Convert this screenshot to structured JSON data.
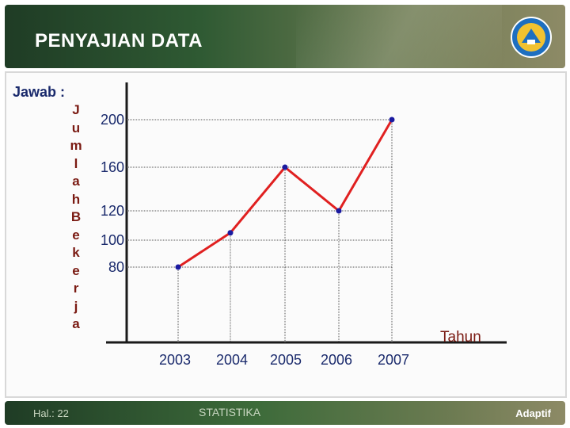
{
  "header": {
    "title": "PENYAJIAN DATA"
  },
  "logo": {
    "icon": "tut-wuri-handayani-logo"
  },
  "content": {
    "label": "Jawab :"
  },
  "footer": {
    "page": "Hal.: 22",
    "subject": "STATISTIKA",
    "brand": "Adaptif"
  },
  "colors": {
    "line": "#e02020",
    "point": "#1a1aa0",
    "axis": "#1a1a1a",
    "header": "#2f5a33"
  },
  "chart_data": {
    "type": "line",
    "ylabel": "JumlahBekerja",
    "xlabel": "Tahun",
    "categories": [
      "2003",
      "2004",
      "2005",
      "2006",
      "2007"
    ],
    "y_ticks": [
      200,
      160,
      120,
      100,
      80
    ],
    "series": [
      {
        "values": [
          80,
          105,
          160,
          120,
          200
        ]
      }
    ]
  }
}
